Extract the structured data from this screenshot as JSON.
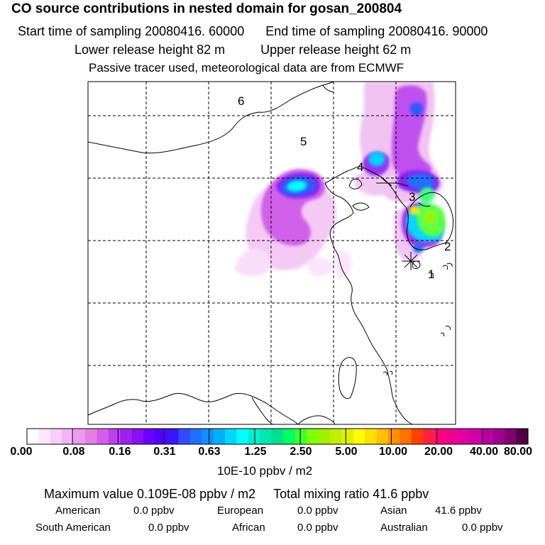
{
  "title": "CO  source contributions in nested domain for gosan_200804",
  "header": {
    "start_time": "Start time of sampling 20080416. 60000",
    "end_time": "End time of sampling 20080416. 90000",
    "lower_height": "Lower release height   82 m",
    "upper_height": "Upper release height   62 m",
    "tracer_note": "Passive tracer used, meteorological data are from ECMWF"
  },
  "map": {
    "region_labels": [
      "1",
      "2",
      "3",
      "4",
      "5",
      "6"
    ]
  },
  "colorbar": {
    "tick_labels": [
      "0.00",
      "0.08",
      "0.16",
      "0.31",
      "0.63",
      "1.25",
      "2.50",
      "5.00",
      "10.00",
      "20.00",
      "40.00",
      "80.00"
    ],
    "unit": "10E-10 ppbv / m2",
    "colors": [
      "#ffffff",
      "#fde6fd",
      "#f9ccf9",
      "#f4b3f4",
      "#ef99ef",
      "#e57ee5",
      "#d65cec",
      "#bf40f0",
      "#a020f0",
      "#8a10f4",
      "#6a00ff",
      "#5000ff",
      "#3c14ff",
      "#2f4cff",
      "#2070ff",
      "#1090ff",
      "#00b0ff",
      "#00d8ff",
      "#00ffff",
      "#00f0d0",
      "#00e8b0",
      "#00e090",
      "#00ff60",
      "#40ff30",
      "#80ff00",
      "#a0f000",
      "#c0f000",
      "#e0f000",
      "#ffff00",
      "#ffe000",
      "#ffc000",
      "#ff9000",
      "#ff7000",
      "#ff4000",
      "#ff2040",
      "#ff0080",
      "#f00090",
      "#e000a0",
      "#d000a8",
      "#b800a0",
      "#a00090",
      "#800070",
      "#500040"
    ]
  },
  "summary": {
    "max_value": "Maximum value  0.109E-08 ppbv / m2",
    "total_mixing": "Total mixing ratio       41.6 ppbv",
    "american_label": "American",
    "american_val": "0.0 ppbv",
    "european_label": "European",
    "european_val": "0.0 ppbv",
    "asian_label": "Asian",
    "asian_val": "41.6 ppbv",
    "south_american_label": "South American",
    "south_american_val": "0.0 ppbv",
    "african_label": "African",
    "african_val": "0.0 ppbv",
    "australian_label": "Australian",
    "australian_val": "0.0 ppbv"
  }
}
